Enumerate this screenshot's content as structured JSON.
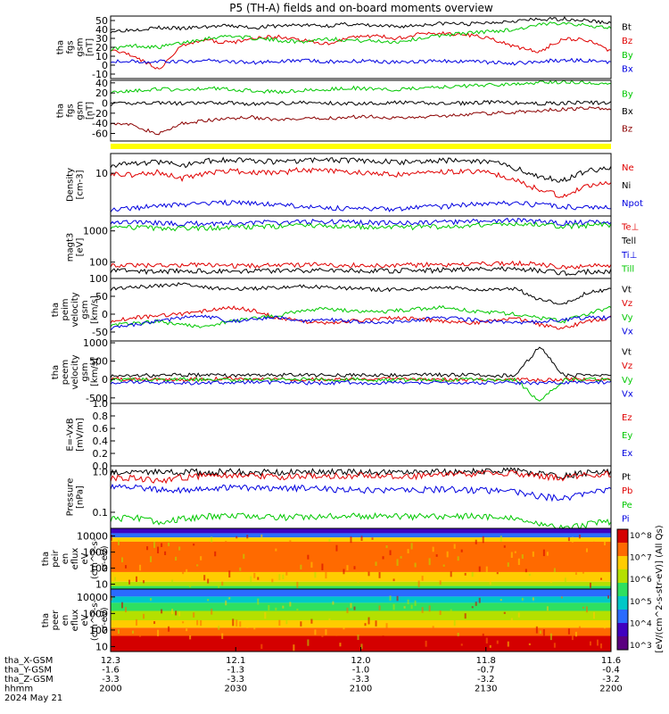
{
  "title": "P5 (TH-A) fields and on-board moments overview",
  "footer": {
    "row_labels": [
      "tha_X-GSM",
      "tha_Y-GSM",
      "tha_Z-GSM",
      "hhmm",
      "2024 May 21"
    ],
    "x_gsm": [
      "12.3",
      "12.1",
      "12.0",
      "11.8",
      "11.6"
    ],
    "y_gsm": [
      "-1.6",
      "-1.3",
      "-1.0",
      "-0.7",
      "-0.4"
    ],
    "z_gsm": [
      "-3.3",
      "-3.3",
      "-3.3",
      "-3.2",
      "-3.2"
    ],
    "hhmm": [
      "2000",
      "2030",
      "2100",
      "2130",
      "2200"
    ]
  },
  "colorbar": {
    "label": "[eV/(cm^2-s-str-eV)] (All Qs)",
    "ticks": [
      "10^8",
      "10^7",
      "10^6",
      "10^5",
      "10^4",
      "10^3"
    ],
    "colors": [
      "#d40000",
      "#ff6a00",
      "#ffcc00",
      "#b4e000",
      "#2ee060",
      "#00c8c8",
      "#2a6bff",
      "#4000c0",
      "#5a0080"
    ]
  },
  "chart_data": [
    {
      "type": "line",
      "id": "fgs_gsm",
      "ylabel": [
        "tha",
        "fgs",
        "gsm",
        "[nT]"
      ],
      "ylim": [
        -15,
        55
      ],
      "yticks": [
        "50",
        "40",
        "30",
        "20",
        "10",
        "0",
        "-10"
      ],
      "xlim": [
        "20:00",
        "22:00"
      ],
      "series": [
        {
          "name": "Bt",
          "color": "#000000",
          "values": [
            38,
            40,
            42,
            41,
            43,
            44,
            42,
            44,
            45,
            44,
            46,
            44,
            43,
            45,
            47,
            46,
            48,
            50,
            51,
            52,
            50,
            47
          ]
        },
        {
          "name": "Bz",
          "color": "#e00000",
          "values": [
            18,
            10,
            -5,
            22,
            28,
            25,
            30,
            32,
            28,
            24,
            30,
            33,
            30,
            35,
            36,
            34,
            30,
            20,
            15,
            30,
            28,
            15
          ]
        },
        {
          "name": "By",
          "color": "#00c800",
          "values": [
            18,
            22,
            20,
            25,
            30,
            33,
            30,
            28,
            26,
            30,
            28,
            27,
            26,
            30,
            34,
            36,
            38,
            40,
            45,
            48,
            44,
            42
          ]
        },
        {
          "name": "Bx",
          "color": "#0000e0",
          "values": [
            5,
            4,
            4,
            4,
            5,
            4,
            3,
            4,
            5,
            4,
            4,
            5,
            3,
            4,
            5,
            4,
            3,
            2,
            4,
            6,
            5,
            3
          ]
        }
      ]
    },
    {
      "type": "line",
      "id": "fgs_gsm_angles",
      "ylabel": [
        "tha",
        "fgs",
        "gsm",
        "[nT]"
      ],
      "ylim": [
        -75,
        45
      ],
      "yticks": [
        "40",
        "20",
        "0",
        "-20",
        "-40",
        "-60"
      ],
      "xlim": [
        "20:00",
        "22:00"
      ],
      "series": [
        {
          "name": "By",
          "color": "#00c800",
          "values": [
            22,
            25,
            28,
            26,
            30,
            28,
            24,
            22,
            25,
            27,
            30,
            28,
            26,
            30,
            32,
            34,
            36,
            38,
            40,
            42,
            40,
            38
          ]
        },
        {
          "name": "Bx",
          "color": "#000000",
          "values": [
            -2,
            0,
            1,
            -1,
            0,
            1,
            -2,
            0,
            1,
            0,
            -1,
            0,
            1,
            0,
            -1,
            0,
            2,
            0,
            -1,
            0,
            1,
            0
          ]
        },
        {
          "name": "Bz",
          "color": "#8b0000",
          "values": [
            -38,
            -45,
            -62,
            -40,
            -35,
            -30,
            -28,
            -34,
            -32,
            -30,
            -28,
            -26,
            -30,
            -28,
            -25,
            -22,
            -20,
            -18,
            -15,
            -12,
            -10,
            -12
          ]
        }
      ]
    },
    {
      "type": "line",
      "id": "density",
      "ylabel": [
        "Density",
        "[cm-3]"
      ],
      "scale": "log",
      "ylim": [
        0.5,
        40
      ],
      "yticks": [
        "10"
      ],
      "xlim": [
        "20:00",
        "22:00"
      ],
      "series": [
        {
          "name": "Ne",
          "color": "#e00000",
          "values": [
            10,
            9,
            11,
            7,
            10,
            12,
            11,
            10,
            13,
            12,
            11,
            10,
            9,
            10,
            11,
            12,
            10,
            6,
            3,
            2,
            4,
            5
          ]
        },
        {
          "name": "Ni",
          "color": "#000000",
          "values": [
            18,
            20,
            22,
            17,
            24,
            26,
            25,
            22,
            24,
            26,
            25,
            24,
            22,
            23,
            25,
            24,
            23,
            14,
            8,
            6,
            12,
            14
          ]
        },
        {
          "name": "Npot",
          "color": "#0000e0",
          "values": [
            0.8,
            0.9,
            1.0,
            1.1,
            1.2,
            1.3,
            1.2,
            1.1,
            1.0,
            0.9,
            0.85,
            0.8,
            0.85,
            0.9,
            1.0,
            1.1,
            1.2,
            1.2,
            1.1,
            1.0,
            0.9,
            0.9
          ]
        }
      ]
    },
    {
      "type": "line",
      "id": "temperature",
      "ylabel": [
        "magt3",
        "[eV]"
      ],
      "scale": "log",
      "ylim": [
        30,
        3000
      ],
      "yticks": [
        "1000",
        "100"
      ],
      "xlim": [
        "20:00",
        "22:00"
      ],
      "series": [
        {
          "name": "Te⊥",
          "color": "#e00000",
          "values": [
            85,
            80,
            78,
            82,
            80,
            76,
            78,
            80,
            82,
            84,
            80,
            78,
            80,
            82,
            85,
            88,
            90,
            92,
            85,
            70,
            75,
            80
          ]
        },
        {
          "name": "Tell",
          "color": "#000000",
          "values": [
            55,
            52,
            50,
            54,
            52,
            50,
            52,
            54,
            55,
            56,
            54,
            52,
            54,
            55,
            56,
            58,
            60,
            62,
            55,
            45,
            50,
            52
          ]
        },
        {
          "name": "Ti⊥",
          "color": "#0000e0",
          "values": [
            2000,
            1900,
            1800,
            1700,
            1750,
            1800,
            1850,
            1900,
            1950,
            2000,
            1900,
            1850,
            1800,
            1850,
            1900,
            2000,
            2100,
            2200,
            2000,
            1800,
            1900,
            2000
          ]
        },
        {
          "name": "Till",
          "color": "#00c800",
          "values": [
            1400,
            1300,
            1250,
            1200,
            1250,
            1300,
            1350,
            1400,
            1450,
            1500,
            1400,
            1350,
            1300,
            1350,
            1400,
            1500,
            1600,
            1700,
            1600,
            1400,
            1500,
            1600
          ]
        }
      ]
    },
    {
      "type": "line",
      "id": "peim_velocity",
      "ylabel": [
        "tha",
        "peim",
        "velocity",
        "gsm",
        "[km/s]"
      ],
      "ylim": [
        -75,
        100
      ],
      "yticks": [
        "100",
        "50",
        "0",
        "-50"
      ],
      "xlim": [
        "20:00",
        "22:00"
      ],
      "series": [
        {
          "name": "Vt",
          "color": "#000000",
          "values": [
            70,
            75,
            80,
            85,
            75,
            70,
            72,
            74,
            78,
            76,
            72,
            70,
            68,
            72,
            75,
            70,
            68,
            72,
            40,
            30,
            60,
            70
          ]
        },
        {
          "name": "Vz",
          "color": "#e00000",
          "values": [
            -20,
            -10,
            -5,
            0,
            10,
            20,
            10,
            -10,
            -20,
            -25,
            -20,
            -15,
            -10,
            -15,
            -20,
            -25,
            -20,
            -10,
            -30,
            -40,
            -20,
            -10
          ]
        },
        {
          "name": "Vy",
          "color": "#00c800",
          "values": [
            -30,
            -25,
            -20,
            -30,
            -35,
            -20,
            -10,
            -5,
            10,
            15,
            10,
            5,
            10,
            15,
            20,
            10,
            5,
            0,
            -10,
            -20,
            0,
            20
          ]
        },
        {
          "name": "Vx",
          "color": "#0000e0",
          "values": [
            -40,
            -30,
            -20,
            -10,
            -5,
            -20,
            -15,
            -10,
            -20,
            -15,
            -20,
            -25,
            -20,
            -15,
            -10,
            -15,
            -20,
            -25,
            -20,
            -15,
            -10,
            -10
          ]
        }
      ]
    },
    {
      "type": "line",
      "id": "peem_velocity",
      "ylabel": [
        "tha",
        "peem",
        "velocity",
        "gsm",
        "[km/s]"
      ],
      "ylim": [
        -650,
        1050
      ],
      "yticks": [
        "1000",
        "500",
        "0",
        "-500"
      ],
      "xlim": [
        "20:00",
        "22:00"
      ],
      "series": [
        {
          "name": "Vt",
          "color": "#000000",
          "values": [
            100,
            120,
            110,
            130,
            120,
            110,
            115,
            120,
            125,
            120,
            115,
            110,
            120,
            125,
            130,
            120,
            110,
            100,
            900,
            120,
            110,
            100
          ]
        },
        {
          "name": "Vz",
          "color": "#e00000",
          "values": [
            20,
            10,
            0,
            -10,
            10,
            20,
            10,
            0,
            -10,
            10,
            0,
            10,
            20,
            10,
            0,
            -10,
            10,
            0,
            -20,
            10,
            0,
            10
          ]
        },
        {
          "name": "Vy",
          "color": "#00c800",
          "values": [
            -20,
            -10,
            0,
            10,
            -10,
            -20,
            -10,
            0,
            10,
            -10,
            0,
            -10,
            -20,
            -10,
            0,
            10,
            -10,
            0,
            -600,
            -10,
            0,
            -10
          ]
        },
        {
          "name": "Vx",
          "color": "#0000e0",
          "values": [
            -80,
            -70,
            -90,
            -100,
            -80,
            -90,
            -70,
            -80,
            -90,
            -100,
            -80,
            -90,
            -70,
            -80,
            -90,
            -100,
            -80,
            -90,
            -100,
            -80,
            -90,
            -70
          ]
        }
      ]
    },
    {
      "type": "line",
      "id": "efield",
      "ylabel": [
        "E=-VxB",
        "[mV/m]"
      ],
      "ylim": [
        0,
        1
      ],
      "yticks": [
        "1.0",
        "0.8",
        "0.6",
        "0.4",
        "0.2",
        "0.0"
      ],
      "xlim": [
        "20:00",
        "22:00"
      ],
      "series": [
        {
          "name": "Ez",
          "color": "#e00000",
          "values": []
        },
        {
          "name": "Ey",
          "color": "#00c800",
          "values": []
        },
        {
          "name": "Ex",
          "color": "#0000e0",
          "values": []
        }
      ]
    },
    {
      "type": "line",
      "id": "pressure",
      "ylabel": [
        "Pressure",
        "[nPa]"
      ],
      "scale": "log",
      "ylim": [
        0.04,
        1.4
      ],
      "yticks": [
        "1.0",
        "0.1"
      ],
      "xlim": [
        "20:00",
        "22:00"
      ],
      "series": [
        {
          "name": "Pt",
          "color": "#000000",
          "values": [
            0.95,
            0.98,
            1.0,
            0.97,
            1.0,
            1.02,
            1.0,
            0.98,
            1.0,
            1.02,
            1.0,
            0.98,
            0.97,
            0.98,
            1.0,
            1.02,
            1.05,
            1.08,
            0.9,
            0.8,
            0.95,
            1.0
          ]
        },
        {
          "name": "Pb",
          "color": "#e00000",
          "values": [
            0.7,
            0.72,
            0.6,
            0.74,
            0.8,
            0.82,
            0.8,
            0.76,
            0.78,
            0.8,
            0.82,
            0.8,
            0.78,
            0.8,
            0.85,
            0.88,
            0.9,
            0.92,
            0.8,
            0.7,
            0.85,
            0.9
          ]
        },
        {
          "name": "Pe",
          "color": "#00c800",
          "values": [
            0.07,
            0.075,
            0.06,
            0.07,
            0.08,
            0.082,
            0.08,
            0.075,
            0.078,
            0.08,
            0.082,
            0.08,
            0.078,
            0.08,
            0.082,
            0.08,
            0.075,
            0.07,
            0.05,
            0.04,
            0.05,
            0.06
          ]
        },
        {
          "name": "Pi",
          "color": "#0000e0",
          "values": [
            0.45,
            0.42,
            0.35,
            0.36,
            0.4,
            0.42,
            0.4,
            0.38,
            0.4,
            0.38,
            0.36,
            0.35,
            0.34,
            0.36,
            0.38,
            0.36,
            0.34,
            0.32,
            0.25,
            0.22,
            0.3,
            0.35
          ]
        }
      ]
    },
    {
      "type": "heatmap",
      "id": "peir_spectrogram",
      "ylabel": [
        "tha",
        "peir",
        "en",
        "eflux",
        "eV",
        "(cm^2-s-",
        "sr-eV)"
      ],
      "scale": "log",
      "ylim": [
        5,
        30000
      ],
      "yticks": [
        "10000",
        "1000",
        "100",
        "10"
      ],
      "xlim": [
        "20:00",
        "22:00"
      ]
    },
    {
      "type": "heatmap",
      "id": "peer_spectrogram",
      "ylabel": [
        "tha",
        "peer",
        "en",
        "eflux",
        "eV",
        "(cm^2-s-",
        "sr-eV)"
      ],
      "scale": "log",
      "ylim": [
        5,
        30000
      ],
      "yticks": [
        "10000",
        "1000",
        "100",
        "10"
      ],
      "xlim": [
        "20:00",
        "22:00"
      ]
    }
  ]
}
